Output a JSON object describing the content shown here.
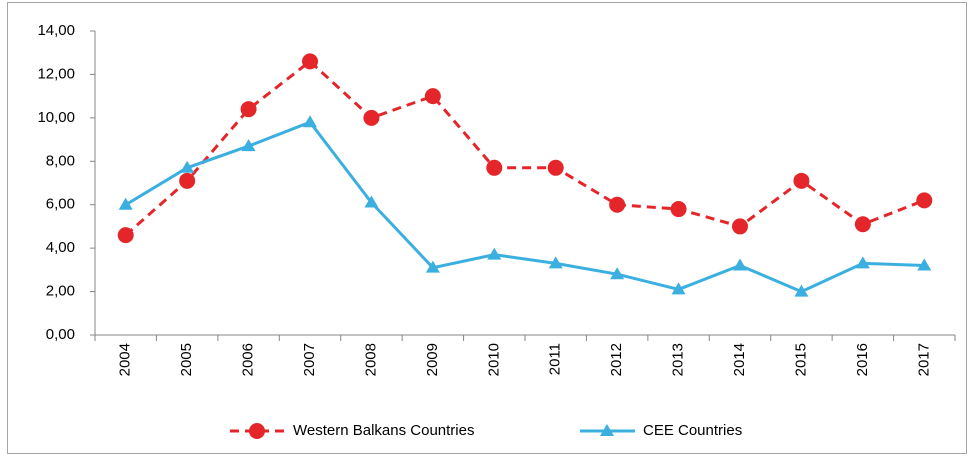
{
  "chart_data": {
    "type": "line",
    "categories": [
      "2004",
      "2005",
      "2006",
      "2007",
      "2008",
      "2009",
      "2010",
      "2011",
      "2012",
      "2013",
      "2014",
      "2015",
      "2016",
      "2017"
    ],
    "series": [
      {
        "name": "Western Balkans Countries",
        "color": "#e4262b",
        "dashed": true,
        "marker": "circle",
        "values": [
          4.6,
          7.1,
          10.4,
          12.6,
          10.0,
          11.0,
          7.7,
          7.7,
          6.0,
          5.8,
          5.0,
          7.1,
          5.1,
          6.2
        ]
      },
      {
        "name": "CEE Countries",
        "color": "#3bafe0",
        "dashed": false,
        "marker": "triangle",
        "values": [
          6.0,
          7.7,
          8.7,
          9.8,
          6.1,
          3.1,
          3.7,
          3.3,
          2.8,
          2.1,
          3.2,
          2.0,
          3.3,
          3.2
        ]
      }
    ],
    "ylim": [
      0,
      14
    ],
    "yticks": [
      {
        "value": 0,
        "label": "0,00"
      },
      {
        "value": 2,
        "label": "2,00"
      },
      {
        "value": 4,
        "label": "4,00"
      },
      {
        "value": 6,
        "label": "6,00"
      },
      {
        "value": 8,
        "label": "8,00"
      },
      {
        "value": 10,
        "label": "10,00"
      },
      {
        "value": 12,
        "label": "12,00"
      },
      {
        "value": 14,
        "label": "14,00"
      }
    ],
    "grid": false,
    "legend": "bottom"
  }
}
